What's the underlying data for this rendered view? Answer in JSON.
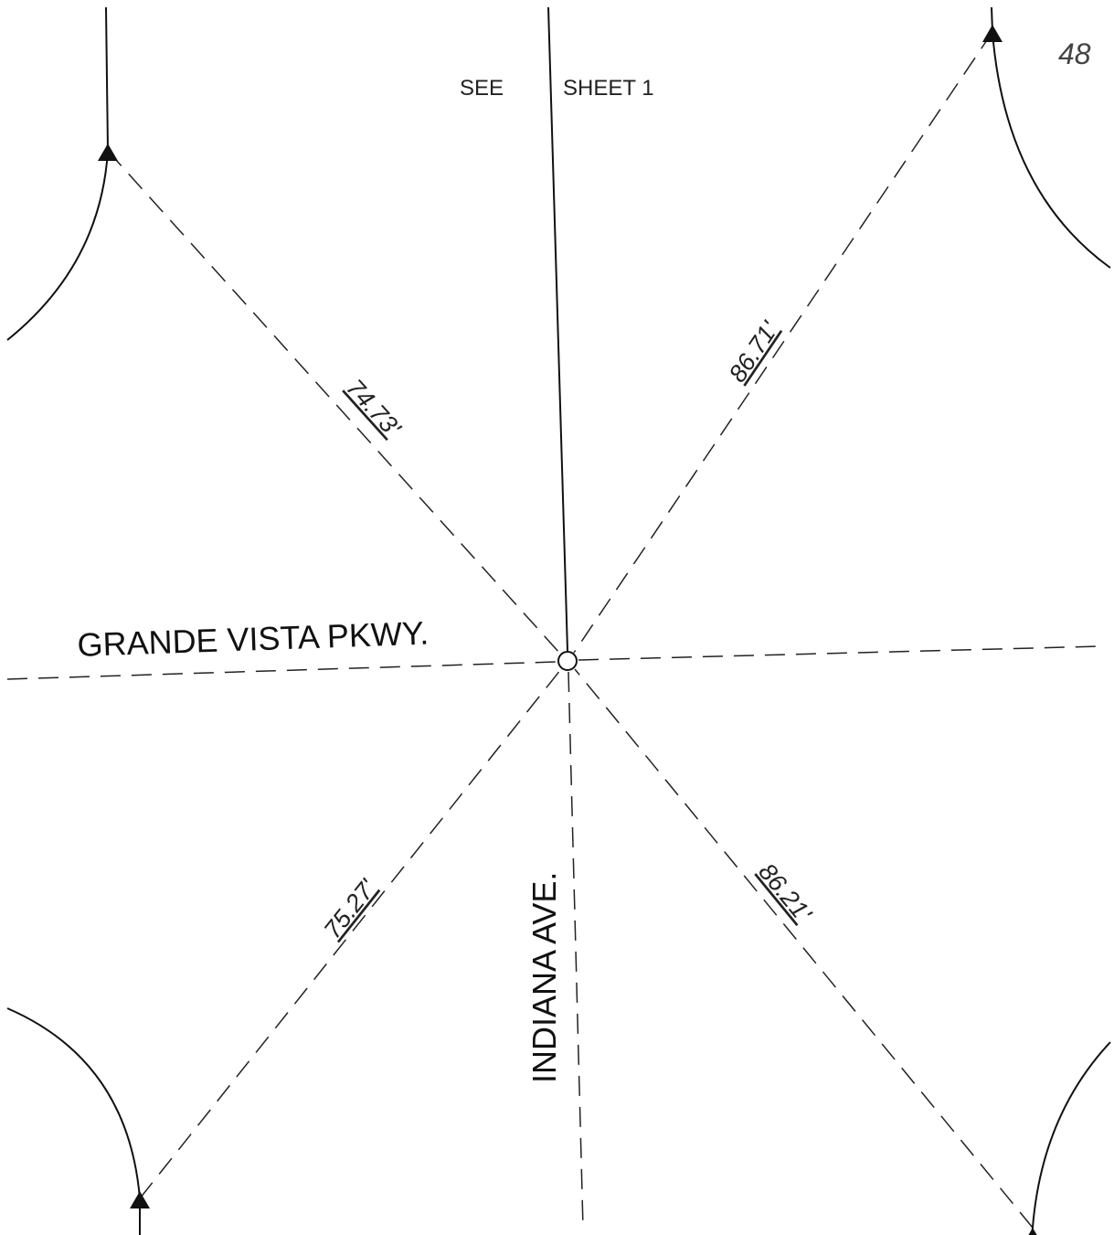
{
  "sheet_number": "48",
  "match_line": {
    "left": "SEE",
    "right": "SHEET 1"
  },
  "streets": {
    "horizontal": "GRANDE VISTA PKWY.",
    "vertical": "INDIANA AVE."
  },
  "distances": {
    "north_west": "74.73'",
    "north_east": "86.71'",
    "south_west": "75.27'",
    "south_east": "86.21'"
  }
}
